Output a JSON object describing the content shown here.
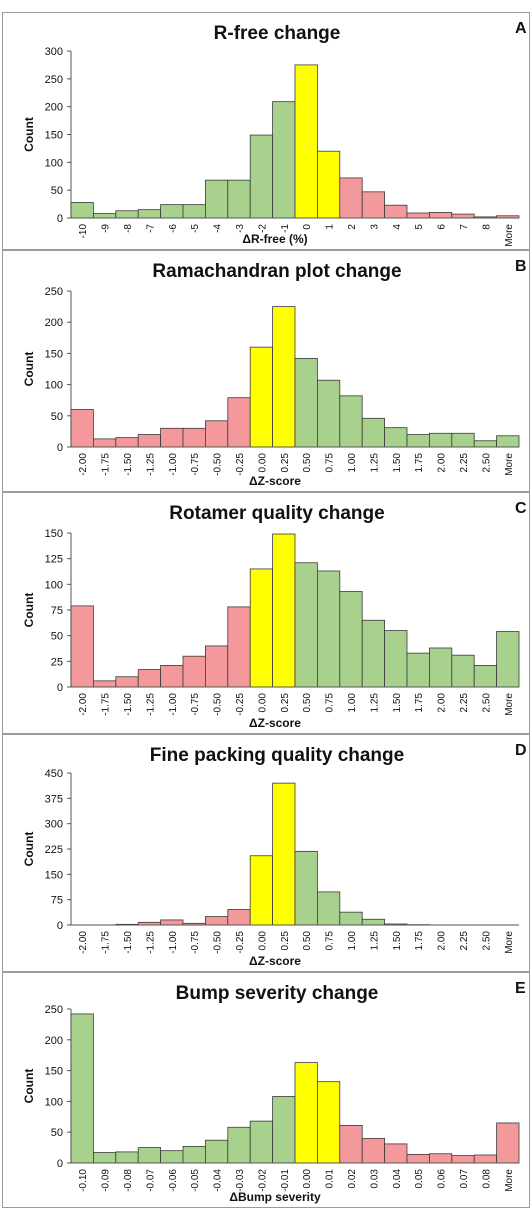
{
  "colors": {
    "green": "#a9d18e",
    "yellow": "#ffff00",
    "red": "#f4999b",
    "bar_stroke": "#3a3a3a"
  },
  "chart_data": [
    {
      "type": "bar",
      "letter": "A",
      "title": "R-free change",
      "xlabel": "ΔR-free (%)",
      "ylabel": "Count",
      "ylim": [
        0,
        300
      ],
      "yticks": [
        0,
        50,
        100,
        150,
        200,
        250,
        300
      ],
      "categories": [
        "-10",
        "-9",
        "-8",
        "-7",
        "-6",
        "-5",
        "-4",
        "-3",
        "-2",
        "-1",
        "0",
        "1",
        "2",
        "3",
        "4",
        "5",
        "6",
        "7",
        "8",
        "More"
      ],
      "values": [
        28,
        8,
        13,
        15,
        24,
        24,
        68,
        68,
        149,
        209,
        275,
        120,
        72,
        47,
        23,
        9,
        10,
        7,
        2,
        4
      ],
      "colors": [
        "green",
        "green",
        "green",
        "green",
        "green",
        "green",
        "green",
        "green",
        "green",
        "green",
        "yellow",
        "yellow",
        "red",
        "red",
        "red",
        "red",
        "red",
        "red",
        "red",
        "red"
      ]
    },
    {
      "type": "bar",
      "letter": "B",
      "title": "Ramachandran  plot change",
      "xlabel": "ΔZ-score",
      "ylabel": "Count",
      "ylim": [
        0,
        250
      ],
      "yticks": [
        0,
        50,
        100,
        150,
        200,
        250
      ],
      "categories": [
        "-2.00",
        "-1.75",
        "-1.50",
        "-1.25",
        "-1.00",
        "-0.75",
        "-0.50",
        "-0.25",
        "0.00",
        "0.25",
        "0.50",
        "0.75",
        "1.00",
        "1.25",
        "1.50",
        "1.75",
        "2.00",
        "2.25",
        "2.50",
        "More"
      ],
      "values": [
        60,
        13,
        15,
        20,
        30,
        30,
        42,
        79,
        160,
        225,
        142,
        107,
        82,
        46,
        31,
        20,
        22,
        22,
        10,
        18
      ],
      "colors": [
        "red",
        "red",
        "red",
        "red",
        "red",
        "red",
        "red",
        "red",
        "yellow",
        "yellow",
        "green",
        "green",
        "green",
        "green",
        "green",
        "green",
        "green",
        "green",
        "green",
        "green"
      ]
    },
    {
      "type": "bar",
      "letter": "C",
      "title": "Rotamer quality  change",
      "xlabel": "ΔZ-score",
      "ylabel": "Count",
      "ylim": [
        0,
        150
      ],
      "yticks": [
        0,
        25,
        50,
        75,
        100,
        125,
        150
      ],
      "categories": [
        "-2.00",
        "-1.75",
        "-1.50",
        "-1.25",
        "-1.00",
        "-0.75",
        "-0.50",
        "-0.25",
        "0.00",
        "0.25",
        "0.50",
        "0.75",
        "1.00",
        "1.25",
        "1.50",
        "1.75",
        "2.00",
        "2.25",
        "2.50",
        "More"
      ],
      "values": [
        79,
        6,
        10,
        17,
        21,
        30,
        40,
        78,
        115,
        149,
        121,
        113,
        93,
        65,
        55,
        33,
        38,
        31,
        21,
        54
      ],
      "colors": [
        "red",
        "red",
        "red",
        "red",
        "red",
        "red",
        "red",
        "red",
        "yellow",
        "yellow",
        "green",
        "green",
        "green",
        "green",
        "green",
        "green",
        "green",
        "green",
        "green",
        "green"
      ]
    },
    {
      "type": "bar",
      "letter": "D",
      "title": "Fine packing quality  change",
      "xlabel": "ΔZ-score",
      "ylabel": "Count",
      "ylim": [
        0,
        450
      ],
      "yticks": [
        0,
        75,
        150,
        225,
        300,
        375,
        450
      ],
      "categories": [
        "-2.00",
        "-1.75",
        "-1.50",
        "-1.25",
        "-1.00",
        "-0.75",
        "-0.50",
        "-0.25",
        "0.00",
        "0.25",
        "0.50",
        "0.75",
        "1.00",
        "1.25",
        "1.50",
        "1.75",
        "2.00",
        "2.25",
        "2.50",
        "More"
      ],
      "values": [
        0,
        0,
        2,
        8,
        15,
        5,
        25,
        46,
        205,
        420,
        218,
        98,
        38,
        17,
        3,
        1,
        0,
        0,
        0,
        0
      ],
      "colors": [
        "red",
        "red",
        "red",
        "red",
        "red",
        "red",
        "red",
        "red",
        "yellow",
        "yellow",
        "green",
        "green",
        "green",
        "green",
        "green",
        "green",
        "green",
        "green",
        "green",
        "green"
      ]
    },
    {
      "type": "bar",
      "letter": "E",
      "title": "Bump severity change",
      "xlabel": "ΔBump severity",
      "ylabel": "Count",
      "ylim": [
        0,
        250
      ],
      "yticks": [
        0,
        50,
        100,
        150,
        200,
        250
      ],
      "categories": [
        "-0.10",
        "-0.09",
        "-0.08",
        "-0.07",
        "-0.06",
        "-0.05",
        "-0.04",
        "-0.03",
        "-0.02",
        "-0.01",
        "0.00",
        "0.01",
        "0.02",
        "0.03",
        "0.04",
        "0.05",
        "0.06",
        "0.07",
        "0.08",
        "More"
      ],
      "values": [
        242,
        17,
        18,
        25,
        20,
        27,
        37,
        58,
        68,
        108,
        163,
        132,
        61,
        40,
        31,
        14,
        15,
        12,
        13,
        65
      ],
      "colors": [
        "green",
        "green",
        "green",
        "green",
        "green",
        "green",
        "green",
        "green",
        "green",
        "green",
        "yellow",
        "yellow",
        "red",
        "red",
        "red",
        "red",
        "red",
        "red",
        "red",
        "red"
      ]
    }
  ]
}
